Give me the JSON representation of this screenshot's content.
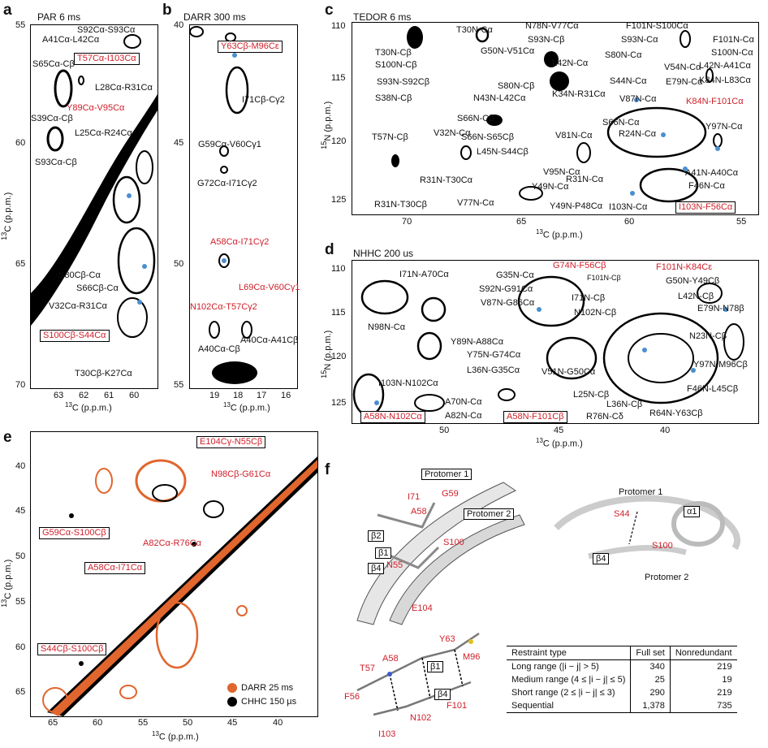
{
  "panels": {
    "a": {
      "letter": "a",
      "title": "PAR 6 ms",
      "x_ticks": [
        "63",
        "62",
        "61",
        "60"
      ],
      "y_ticks": [
        "55",
        "60",
        "65",
        "70"
      ],
      "xlabel_iso": "13",
      "xlabel": "C (p.p.m.)",
      "ylabel_iso": "13",
      "ylabel": "C (p.p.m.)",
      "annotations": [
        "S92Cα-S93Cα",
        "A41Cα-L42Cα",
        "T57Cα-I103Cα",
        "S65Cα-Cβ",
        "L28Cα-R31Cα",
        "Y89Cα-V95Cα",
        "S39Cα-Cβ",
        "L25Cα-R24Cα",
        "S93Cα-Cβ",
        "S80Cβ-Cα",
        "S66Cβ-Cα",
        "V32Cα-R31Cα",
        "S100Cβ-S44Cα",
        "T30Cβ-K27Cα"
      ]
    },
    "b": {
      "letter": "b",
      "title": "DARR 300 ms",
      "x_ticks": [
        "19",
        "18",
        "17",
        "16"
      ],
      "y_ticks": [
        "40",
        "45",
        "50",
        "55"
      ],
      "xlabel_iso": "13",
      "xlabel": "C (p.p.m.)",
      "annotations": [
        "Y63Cβ-M96Cε",
        "I71Cβ-Cγ2",
        "G59Cα-V60Cγ1",
        "G72Cα-I71Cγ2",
        "A58Cα-I71Cγ2",
        "L69Cα-V60Cγ1",
        "N102Cα-T57Cγ2",
        "A40Cα-Cβ",
        "A40Cα-A41Cβ"
      ]
    },
    "c": {
      "letter": "c",
      "title": "TEDOR 6 ms",
      "x_ticks": [
        "70",
        "65",
        "60",
        "55"
      ],
      "y_ticks": [
        "110",
        "115",
        "120",
        "125"
      ],
      "xlabel_iso": "13",
      "xlabel": "C (p.p.m.)",
      "ylabel_iso": "15",
      "ylabel": "N (p.p.m.)",
      "annotations": [
        "T30N-Cα",
        "N78N-V77Cα",
        "F101N-S100Cα",
        "T30N-Cβ",
        "S93N-Cβ",
        "S93N-Cα",
        "F101N-Cα",
        "S100N-Cβ",
        "G50N-V51Cα",
        "L42N-Cα",
        "S80N-Cα",
        "V54N-Cα",
        "S100N-Cα",
        "S93N-S92Cβ",
        "S44N-Cα",
        "E79N-Cα",
        "L42N-A41Cα",
        "S80N-Cβ",
        "K34N-R31Cα",
        "K84N-L83Cα",
        "S38N-Cβ",
        "N43N-L42Cα",
        "V87N-Cα",
        "K84N-F101Cα",
        "S66N-Cβ",
        "S66N-Cα",
        "R24N-Cα",
        "Y97N-Cα",
        "T57N-Cβ",
        "V32N-Cα",
        "S66N-S65Cβ",
        "L45N-S44Cβ",
        "V81N-Cα",
        "R31N-T30Cα",
        "V95N-Cα",
        "A41N-A40Cα",
        "R31N-Cα",
        "F46N-Cα",
        "Y49N-Cα",
        "R31N-T30Cβ",
        "V77N-Cα",
        "Y49N-P48Cα",
        "I103N-Cα",
        "I103N-F56Cα"
      ]
    },
    "d": {
      "letter": "d",
      "title": "NHHC 200 us",
      "x_ticks": [
        "50",
        "45",
        "40"
      ],
      "y_ticks": [
        "110",
        "115",
        "120",
        "125"
      ],
      "xlabel_iso": "13",
      "xlabel": "C (p.p.m.)",
      "ylabel_iso": "15",
      "ylabel": "N (p.p.m.)",
      "annotations": [
        "G74N-F56Cβ",
        "F101N-K84Cε",
        "I71N-A70Cα",
        "G35N-Cα",
        "F101N-Cβ",
        "G50N-Y49Cβ",
        "S92N-G91Cα",
        "L42N-Cβ",
        "V87N-G86Cα",
        "I71N-Cβ",
        "E79N-N78β",
        "N98N-Cα",
        "N102N-Cβ",
        "N23N-Cβ",
        "Y89N-A88Cα",
        "Y75N-G74Cα",
        "Y97N-M96Cβ",
        "L36N-G35Cα",
        "V51N-G50Cα",
        "I103N-N102Cα",
        "L25N-Cβ",
        "F46N-L45Cβ",
        "A70N-Cα",
        "L36N-Cβ",
        "A82N-Cα",
        "R64N-Y63Cβ",
        "R76N-Cδ",
        "A58N-N102Cα",
        "A58N-F101Cβ"
      ]
    },
    "e": {
      "letter": "e",
      "x_ticks": [
        "65",
        "60",
        "55",
        "50",
        "45",
        "40"
      ],
      "y_ticks": [
        "40",
        "45",
        "50",
        "55",
        "60",
        "65"
      ],
      "xlabel_iso": "13",
      "xlabel": "C (p.p.m.)",
      "ylabel_iso": "13",
      "ylabel": "C (p.p.m.)",
      "annotations": [
        "E104Cγ-N55Cβ",
        "N98Cβ-G61Cα",
        "G59Cα-S100Cβ",
        "A82Cα-R76Cα",
        "A58Cα-I71Cα",
        "S44Cβ-S100Cβ"
      ],
      "legend": [
        {
          "label": "DARR 25 ms",
          "color": "#e0662e"
        },
        {
          "label": "CHHC 150 µs",
          "color": "#000000"
        }
      ]
    },
    "f": {
      "letter": "f",
      "left_labels": [
        "Protomer 1",
        "Protomer 2",
        "I71",
        "G59",
        "A58",
        "S100",
        "β2",
        "β1",
        "N55",
        "β4",
        "E104"
      ],
      "right_labels": [
        "Protomer 1",
        "α1",
        "S44",
        "S100",
        "β4",
        "Protomer 2"
      ],
      "bottom_labels": [
        "Y63",
        "M96",
        "A58",
        "β1",
        "T57",
        "β4",
        "F56",
        "F101",
        "N102",
        "I103"
      ]
    }
  },
  "table": {
    "headers": [
      "Restraint type",
      "Full set",
      "Nonredundant"
    ],
    "rows": [
      [
        "Long range (|i − j| > 5)",
        "340",
        "219"
      ],
      [
        "Medium range (4 ≤ |i − j| ≤ 5)",
        "25",
        "19"
      ],
      [
        "Short range (2 ≤ |i − j| ≤ 3)",
        "290",
        "219"
      ],
      [
        "Sequential",
        "1,378",
        "735"
      ]
    ]
  },
  "colors": {
    "red_label": "#d0202a",
    "darr_orange": "#e0662e",
    "peak_blue": "#4a8fd0"
  }
}
